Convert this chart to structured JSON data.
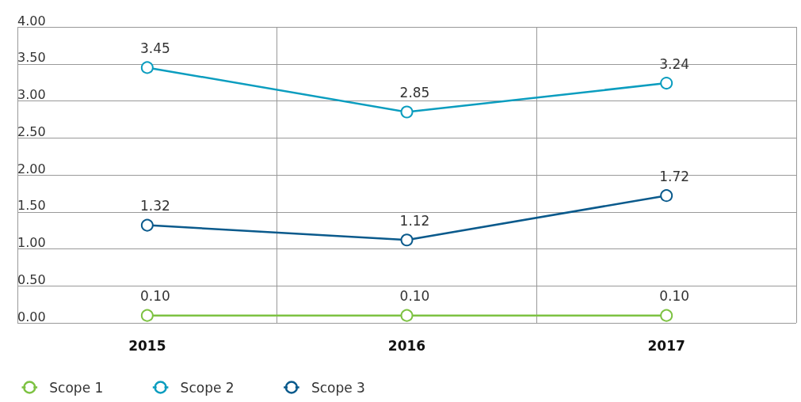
{
  "chart_data": {
    "type": "line",
    "categories": [
      "2015",
      "2016",
      "2017"
    ],
    "series": [
      {
        "name": "Scope 1",
        "color": "#7dc242",
        "values": [
          0.1,
          0.1,
          0.1
        ],
        "value_labels": [
          "0.10",
          "0.10",
          "0.10"
        ]
      },
      {
        "name": "Scope 2",
        "color": "#0b9dbf",
        "values": [
          3.45,
          2.85,
          3.24
        ],
        "value_labels": [
          "3.45",
          "2.85",
          "3.24"
        ]
      },
      {
        "name": "Scope 3",
        "color": "#0a5a8c",
        "values": [
          1.32,
          1.12,
          1.72
        ],
        "value_labels": [
          "1.32",
          "1.12",
          "1.72"
        ]
      }
    ],
    "ylim": [
      0,
      4
    ],
    "yticks": [
      {
        "value": 0,
        "label": "0.00"
      },
      {
        "value": 0.5,
        "label": "0.50"
      },
      {
        "value": 1,
        "label": "1.00"
      },
      {
        "value": 1.5,
        "label": "1.50"
      },
      {
        "value": 2,
        "label": "2.00"
      },
      {
        "value": 2.5,
        "label": "2.50"
      },
      {
        "value": 3,
        "label": "3.00"
      },
      {
        "value": 3.5,
        "label": "3.50"
      },
      {
        "value": 4,
        "label": "4.00"
      }
    ],
    "grid": true,
    "legend": "bottom left",
    "marker": "circle",
    "line_style": "solid"
  }
}
